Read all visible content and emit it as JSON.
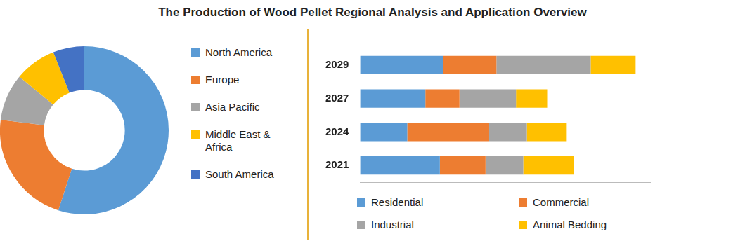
{
  "title": "The Production of Wood Pellet Regional Analysis and Application Overview",
  "chart_data": [
    {
      "type": "doughnut",
      "categories": [
        "North America",
        "Europe",
        "Asia Pacific",
        "Middle East & Africa",
        "South America"
      ],
      "values": [
        55,
        22,
        9,
        8,
        6
      ],
      "colors": [
        "#5B9BD5",
        "#ED7D31",
        "#A5A5A5",
        "#FFC000",
        "#4472C4"
      ],
      "legend": "right"
    },
    {
      "type": "bar",
      "orientation": "horizontal",
      "stacked": true,
      "categories": [
        "2029",
        "2027",
        "2024",
        "2021"
      ],
      "series": [
        {
          "name": "Residential",
          "color": "#5B9BD5",
          "values": [
            115,
            90,
            65,
            110
          ]
        },
        {
          "name": "Commercial",
          "color": "#ED7D31",
          "values": [
            73,
            47,
            113,
            63
          ]
        },
        {
          "name": "Industrial",
          "color": "#A5A5A5",
          "values": [
            130,
            78,
            52,
            52
          ]
        },
        {
          "name": "Animal Bedding",
          "color": "#FFC000",
          "values": [
            62,
            43,
            55,
            70
          ]
        }
      ],
      "xlim": [
        0,
        400
      ],
      "grid": false,
      "tick_labels": "y",
      "legend": "bottom"
    }
  ]
}
